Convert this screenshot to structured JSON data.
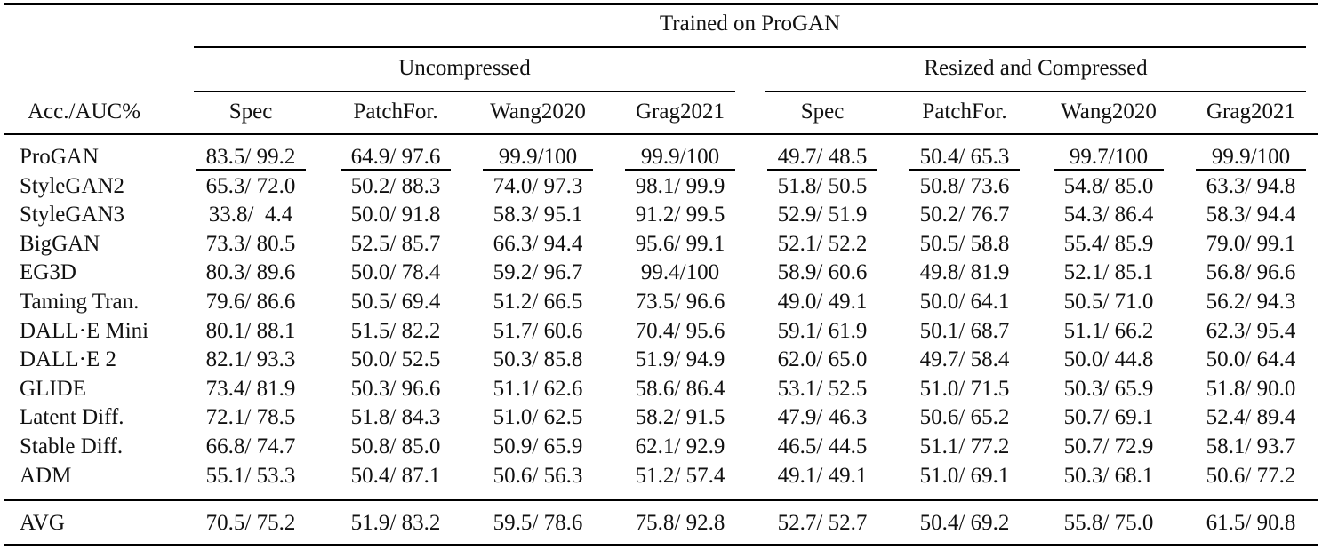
{
  "table": {
    "corner_header": "Acc./AUC%",
    "top_group": "Trained on ProGAN",
    "groups": [
      "Uncompressed",
      "Resized and Compressed"
    ],
    "columns": [
      "Spec",
      "PatchFor.",
      "Wang2020",
      "Grag2021",
      "Spec",
      "PatchFor.",
      "Wang2020",
      "Grag2021"
    ],
    "rows": [
      {
        "name": "ProGAN",
        "cells": [
          "83.5/ 99.2",
          "64.9/ 97.6",
          "99.9/100",
          "99.9/100",
          "49.7/ 48.5",
          "50.4/ 65.3",
          "99.7/100",
          "99.9/100"
        ]
      },
      {
        "name": "StyleGAN2",
        "cells": [
          "65.3/ 72.0",
          "50.2/ 88.3",
          "74.0/ 97.3",
          "98.1/ 99.9",
          "51.8/ 50.5",
          "50.8/ 73.6",
          "54.8/ 85.0",
          "63.3/ 94.8"
        ]
      },
      {
        "name": "StyleGAN3",
        "cells": [
          "33.8/  4.4",
          "50.0/ 91.8",
          "58.3/ 95.1",
          "91.2/ 99.5",
          "52.9/ 51.9",
          "50.2/ 76.7",
          "54.3/ 86.4",
          "58.3/ 94.4"
        ]
      },
      {
        "name": "BigGAN",
        "cells": [
          "73.3/ 80.5",
          "52.5/ 85.7",
          "66.3/ 94.4",
          "95.6/ 99.1",
          "52.1/ 52.2",
          "50.5/ 58.8",
          "55.4/ 85.9",
          "79.0/ 99.1"
        ]
      },
      {
        "name": "EG3D",
        "cells": [
          "80.3/ 89.6",
          "50.0/ 78.4",
          "59.2/ 96.7",
          "99.4/100",
          "58.9/ 60.6",
          "49.8/ 81.9",
          "52.1/ 85.1",
          "56.8/ 96.6"
        ]
      },
      {
        "name": "Taming Tran.",
        "cells": [
          "79.6/ 86.6",
          "50.5/ 69.4",
          "51.2/ 66.5",
          "73.5/ 96.6",
          "49.0/ 49.1",
          "50.0/ 64.1",
          "50.5/ 71.0",
          "56.2/ 94.3"
        ]
      },
      {
        "name": "DALL·E Mini",
        "cells": [
          "80.1/ 88.1",
          "51.5/ 82.2",
          "51.7/ 60.6",
          "70.4/ 95.6",
          "59.1/ 61.9",
          "50.1/ 68.7",
          "51.1/ 66.2",
          "62.3/ 95.4"
        ]
      },
      {
        "name": "DALL·E 2",
        "cells": [
          "82.1/ 93.3",
          "50.0/ 52.5",
          "50.3/ 85.8",
          "51.9/ 94.9",
          "62.0/ 65.0",
          "49.7/ 58.4",
          "50.0/ 44.8",
          "50.0/ 64.4"
        ]
      },
      {
        "name": "GLIDE",
        "cells": [
          "73.4/ 81.9",
          "50.3/ 96.6",
          "51.1/ 62.6",
          "58.6/ 86.4",
          "53.1/ 52.5",
          "51.0/ 71.5",
          "50.3/ 65.9",
          "51.8/ 90.0"
        ]
      },
      {
        "name": "Latent Diff.",
        "cells": [
          "72.1/ 78.5",
          "51.8/ 84.3",
          "51.0/ 62.5",
          "58.2/ 91.5",
          "47.9/ 46.3",
          "50.6/ 65.2",
          "50.7/ 69.1",
          "52.4/ 89.4"
        ]
      },
      {
        "name": "Stable Diff.",
        "cells": [
          "66.8/ 74.7",
          "50.8/ 85.0",
          "50.9/ 65.9",
          "62.1/ 92.9",
          "46.5/ 44.5",
          "51.1/ 77.2",
          "50.7/ 72.9",
          "58.1/ 93.7"
        ]
      },
      {
        "name": "ADM",
        "cells": [
          "55.1/ 53.3",
          "50.4/ 87.1",
          "50.6/ 56.3",
          "51.2/ 57.4",
          "49.1/ 49.1",
          "51.0/ 69.1",
          "50.3/ 68.1",
          "50.6/ 77.2"
        ]
      }
    ],
    "avg_row": {
      "name": "AVG",
      "cells": [
        "70.5/ 75.2",
        "51.9/ 83.2",
        "59.5/ 78.6",
        "75.8/ 92.8",
        "52.7/ 52.7",
        "50.4/ 69.2",
        "55.8/ 75.0",
        "61.5/ 90.8"
      ]
    }
  }
}
